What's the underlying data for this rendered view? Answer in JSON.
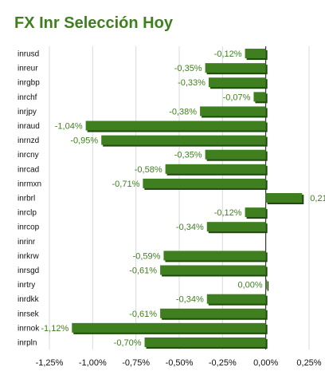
{
  "title": "FX Inr Selección Hoy",
  "chart_data": {
    "type": "bar",
    "orientation": "horizontal",
    "title": "FX Inr Selección Hoy",
    "categories": [
      "inrusd",
      "inreur",
      "inrgbp",
      "inrchf",
      "inrjpy",
      "inraud",
      "inrnzd",
      "inrcny",
      "inrcad",
      "inrmxn",
      "inrbrl",
      "inrclp",
      "inrcop",
      "inrinr",
      "inrkrw",
      "inrsgd",
      "inrtry",
      "inrdkk",
      "inrsek",
      "inrnok",
      "inrpln"
    ],
    "values": [
      -0.12,
      -0.35,
      -0.33,
      -0.07,
      -0.38,
      -1.04,
      -0.95,
      -0.35,
      -0.58,
      -0.71,
      0.21,
      -0.12,
      -0.34,
      null,
      -0.59,
      -0.61,
      0.0,
      -0.34,
      -0.61,
      -1.12,
      -0.7
    ],
    "value_labels": [
      "-0,12%",
      "-0,35%",
      "-0,33%",
      "-0,07%",
      "-0,38%",
      "-1,04%",
      "-0,95%",
      "-0,35%",
      "-0,58%",
      "-0,71%",
      "0,21",
      "-0,12%",
      "-0,34%",
      "",
      "-0,59%",
      "-0,61%",
      "0,00%",
      "-0,34%",
      "-0,61%",
      "-1,12%",
      "-0,70%"
    ],
    "xlim": [
      -1.25,
      0.25
    ],
    "xticks": [
      -1.25,
      -1.0,
      -0.75,
      -0.5,
      -0.25,
      0.0,
      0.25
    ],
    "xtick_labels": [
      "-1,25%",
      "-1,00%",
      "-0,75%",
      "-0,50%",
      "-0,25%",
      "0,00%",
      "0,25%"
    ],
    "grid": true,
    "bar_color": "#3f7f1f",
    "bar_shadow_color": "#1e4a0c",
    "label_color": "#3f7f1f"
  }
}
